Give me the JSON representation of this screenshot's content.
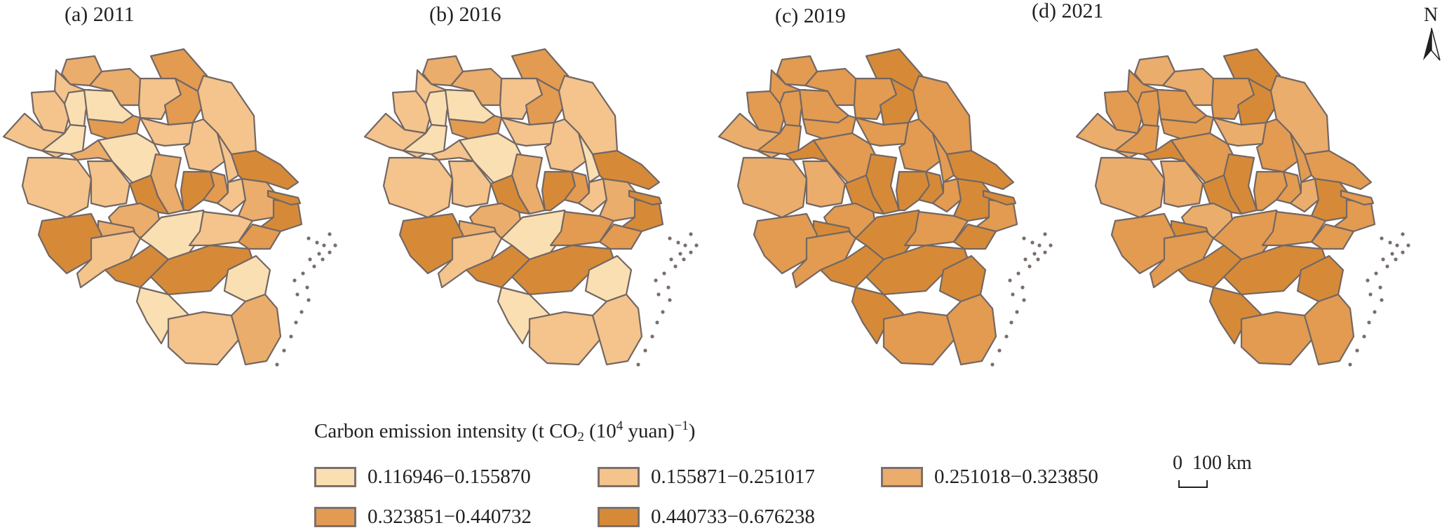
{
  "figure": {
    "panels": [
      {
        "label": "(a) 2011",
        "year": 2011
      },
      {
        "label": "(b) 2016",
        "year": 2016
      },
      {
        "label": "(c) 2019",
        "year": 2019
      },
      {
        "label": "(d) 2021",
        "year": 2021
      }
    ],
    "north_label": "N",
    "scale": {
      "text": "0  100 km"
    },
    "legend": {
      "title_main": "Carbon emission intensity (t CO",
      "title_sub": "2",
      "title_mid": " (10",
      "title_sup1": "4",
      "title_mid2": " yuan)",
      "title_sup2": "−1",
      "title_end": ")",
      "classes": [
        {
          "label": "0.116946−0.155870",
          "color": "#fadfb2"
        },
        {
          "label": "0.155871−0.251017",
          "color": "#f4c48c"
        },
        {
          "label": "0.251018−0.323850",
          "color": "#ebad6c"
        },
        {
          "label": "0.323851−0.440732",
          "color": "#e29b51"
        },
        {
          "label": "0.440733−0.676238",
          "color": "#d68a38"
        }
      ]
    },
    "border_color": "#736763"
  },
  "chart_data": {
    "type": "choropleth",
    "title": "Carbon emission intensity (t CO2 (10^4 yuan)^-1)",
    "legend_placement": "bottom",
    "class_breaks": [
      [
        0.116946,
        0.15587
      ],
      [
        0.155871,
        0.251017
      ],
      [
        0.251018,
        0.32385
      ],
      [
        0.323851,
        0.440732
      ],
      [
        0.440733,
        0.676238
      ]
    ],
    "regions": [
      "r01",
      "r02",
      "r03",
      "r04",
      "r05",
      "r06",
      "r07",
      "r08",
      "r09",
      "r10",
      "r11",
      "r12",
      "r13",
      "r14",
      "r15",
      "r16",
      "r17",
      "r18",
      "r19",
      "r20",
      "r21",
      "r22",
      "r23",
      "r24",
      "r25",
      "r26",
      "r27",
      "r28",
      "r29",
      "r30",
      "r31",
      "r32",
      "r33",
      "r34",
      "r35",
      "r36",
      "r37",
      "r38",
      "r39",
      "r40",
      "r41"
    ],
    "class_index_by_year": {
      "2011": [
        2,
        1,
        2,
        1,
        0,
        3,
        1,
        3,
        1,
        0,
        1,
        3,
        0,
        0,
        1,
        2,
        2,
        1,
        1,
        4,
        4,
        3,
        4,
        1,
        1,
        1,
        2,
        4,
        2,
        2,
        0,
        1,
        3,
        4,
        1,
        4,
        4,
        0,
        0,
        1,
        2
      ],
      "2016": [
        2,
        1,
        2,
        1,
        0,
        3,
        1,
        3,
        1,
        0,
        1,
        3,
        0,
        0,
        1,
        1,
        2,
        1,
        0,
        4,
        4,
        3,
        4,
        1,
        1,
        1,
        2,
        4,
        2,
        2,
        0,
        3,
        3,
        4,
        1,
        4,
        4,
        0,
        0,
        1,
        1
      ],
      "2019": [
        3,
        3,
        3,
        3,
        3,
        4,
        3,
        4,
        3,
        3,
        2,
        3,
        3,
        3,
        3,
        4,
        4,
        3,
        3,
        4,
        4,
        4,
        4,
        2,
        2,
        3,
        4,
        3,
        3,
        4,
        4,
        3,
        4,
        3,
        3,
        4,
        4,
        4,
        4,
        3,
        3
      ],
      "2021": [
        2,
        3,
        2,
        3,
        3,
        4,
        3,
        4,
        2,
        3,
        2,
        3,
        3,
        3,
        2,
        4,
        4,
        3,
        3,
        4,
        3,
        3,
        3,
        2,
        2,
        2,
        4,
        3,
        2,
        4,
        3,
        3,
        3,
        3,
        3,
        4,
        4,
        4,
        4,
        3,
        3
      ]
    }
  }
}
